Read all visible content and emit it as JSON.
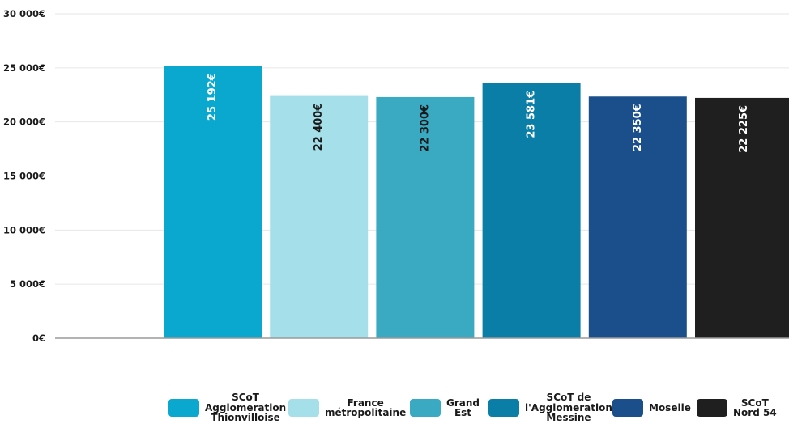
{
  "chart_data": {
    "type": "bar",
    "title": "",
    "xlabel": "",
    "ylabel": "",
    "ylim": [
      0,
      30000
    ],
    "yticks": [
      {
        "value": 0,
        "label": "0€"
      },
      {
        "value": 5000,
        "label": "5 000€"
      },
      {
        "value": 10000,
        "label": "10 000€"
      },
      {
        "value": 15000,
        "label": "15 000€"
      },
      {
        "value": 20000,
        "label": "20 000€"
      },
      {
        "value": 25000,
        "label": "25 000€"
      },
      {
        "value": 30000,
        "label": "30 000€"
      }
    ],
    "grid": true,
    "legend_position": "bottom-right",
    "categories": [
      "SCoT Agglomeration Thionvilloise",
      "France métropolitaine",
      "Grand Est",
      "SCoT de l'Agglomeration Messine",
      "Moselle",
      "SCoT Nord 54"
    ],
    "values": [
      25192,
      22400,
      22300,
      23581,
      22350,
      22225
    ],
    "data_labels": [
      "25 192€",
      "22 400€",
      "22 300€",
      "23 581€",
      "22 350€",
      "22 225€"
    ],
    "legend_labels": [
      "SCoT\nAgglomeration\nThionvilloise",
      "France\nmétropolitaine",
      "Grand\nEst",
      "SCoT de\nl'Agglomeration\nMessine",
      "Moselle",
      "SCoT\nNord 54"
    ],
    "colors": [
      "#0aa8cf",
      "#a4dfea",
      "#3aa9c2",
      "#0b7ea8",
      "#1a4f8c",
      "#1f1f1f"
    ],
    "label_colors": [
      "#ffffff",
      "#1a1a1a",
      "#1a1a1a",
      "#ffffff",
      "#ffffff",
      "#ffffff"
    ]
  }
}
